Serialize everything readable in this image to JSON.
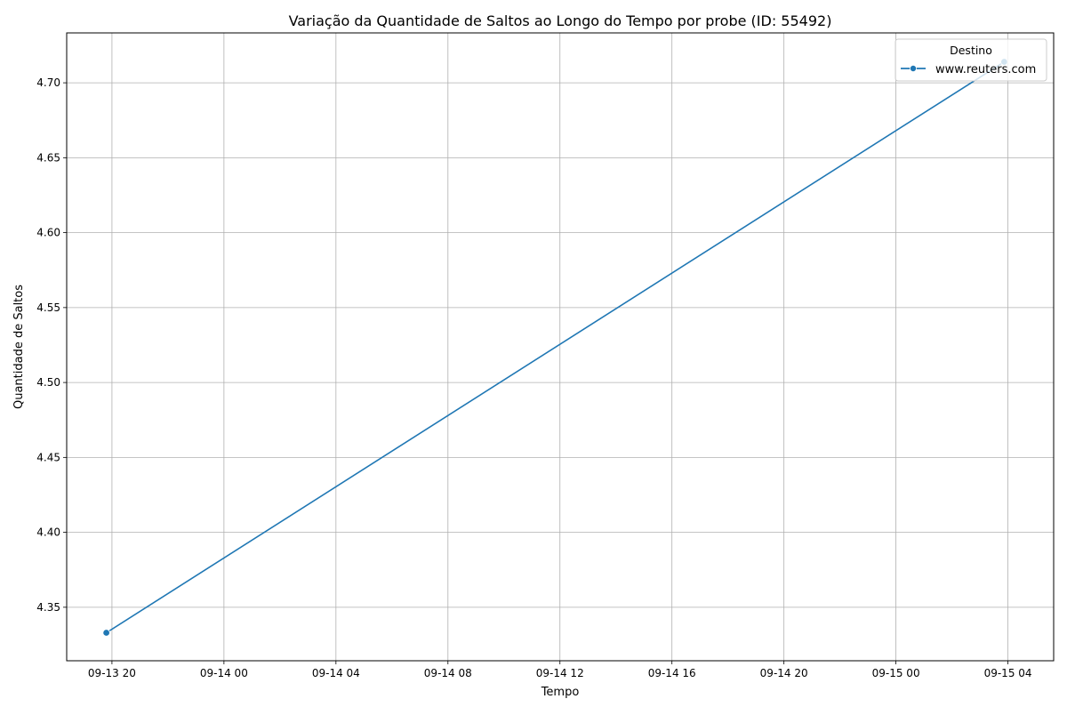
{
  "chart_data": {
    "type": "line",
    "title": "Variação da Quantidade de Saltos ao Longo do Tempo por probe (ID: 55492)",
    "xlabel": "Tempo",
    "ylabel": "Quantidade de Saltos",
    "x_axis_type": "time",
    "xlim": [
      "2024-09-13T18:23:00",
      "2024-09-15T05:38:00"
    ],
    "ylim": [
      4.3143,
      4.7333
    ],
    "x_ticks": [
      {
        "value": "2024-09-13T20:00:00",
        "label": "09-13 20"
      },
      {
        "value": "2024-09-14T00:00:00",
        "label": "09-14 00"
      },
      {
        "value": "2024-09-14T04:00:00",
        "label": "09-14 04"
      },
      {
        "value": "2024-09-14T08:00:00",
        "label": "09-14 08"
      },
      {
        "value": "2024-09-14T12:00:00",
        "label": "09-14 12"
      },
      {
        "value": "2024-09-14T16:00:00",
        "label": "09-14 16"
      },
      {
        "value": "2024-09-14T20:00:00",
        "label": "09-14 20"
      },
      {
        "value": "2024-09-15T00:00:00",
        "label": "09-15 00"
      },
      {
        "value": "2024-09-15T04:00:00",
        "label": "09-15 04"
      }
    ],
    "y_ticks": [
      {
        "value": 4.35,
        "label": "4.35"
      },
      {
        "value": 4.4,
        "label": "4.40"
      },
      {
        "value": 4.45,
        "label": "4.45"
      },
      {
        "value": 4.5,
        "label": "4.50"
      },
      {
        "value": 4.55,
        "label": "4.55"
      },
      {
        "value": 4.6,
        "label": "4.60"
      },
      {
        "value": 4.65,
        "label": "4.65"
      },
      {
        "value": 4.7,
        "label": "4.70"
      }
    ],
    "grid": true,
    "legend": {
      "title": "Destino",
      "position": "top-right"
    },
    "series": [
      {
        "name": "www.reuters.com",
        "color": "#1f77b4",
        "marker": "circle",
        "x": [
          "2024-09-13T19:48:00",
          "2024-09-15T03:52:00"
        ],
        "y": [
          4.333,
          4.714
        ]
      }
    ]
  }
}
